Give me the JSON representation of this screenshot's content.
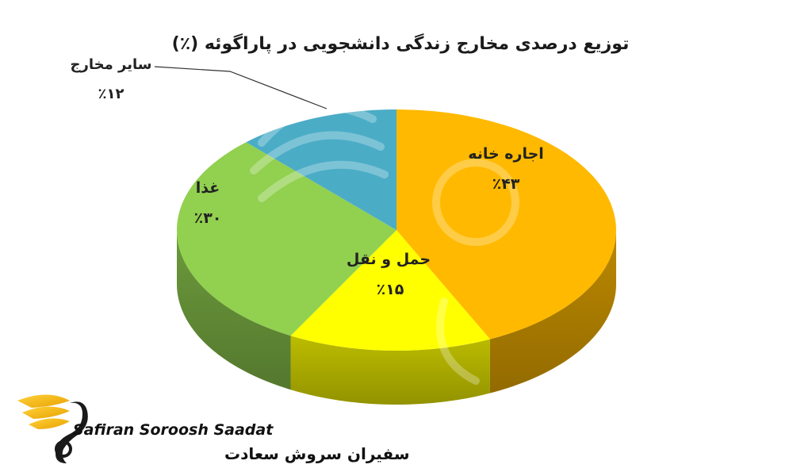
{
  "chart_data": {
    "type": "pie",
    "title": "توزیع درصدی مخارج زندگی دانشجویی در پاراگوئه (٪)",
    "slices": [
      {
        "label": "اجاره خانه",
        "value_text": "٪۴۳",
        "value": 43,
        "color": "#FFB900"
      },
      {
        "label": "حمل و نقل",
        "value_text": "٪۱۵",
        "value": 15,
        "color": "#FFFF00"
      },
      {
        "label": "غذا",
        "value_text": "٪۳۰",
        "value": 30,
        "color": "#92D050"
      },
      {
        "label": "سایر مخارج",
        "value_text": "٪۱۲",
        "value": 12,
        "color": "#4BACC6"
      }
    ],
    "legend": "none"
  },
  "brand": {
    "name_en": "Safiran Soroosh Saadat",
    "name_fa": "سفیران سروش سعادت",
    "logo_color": "#F5B800"
  }
}
